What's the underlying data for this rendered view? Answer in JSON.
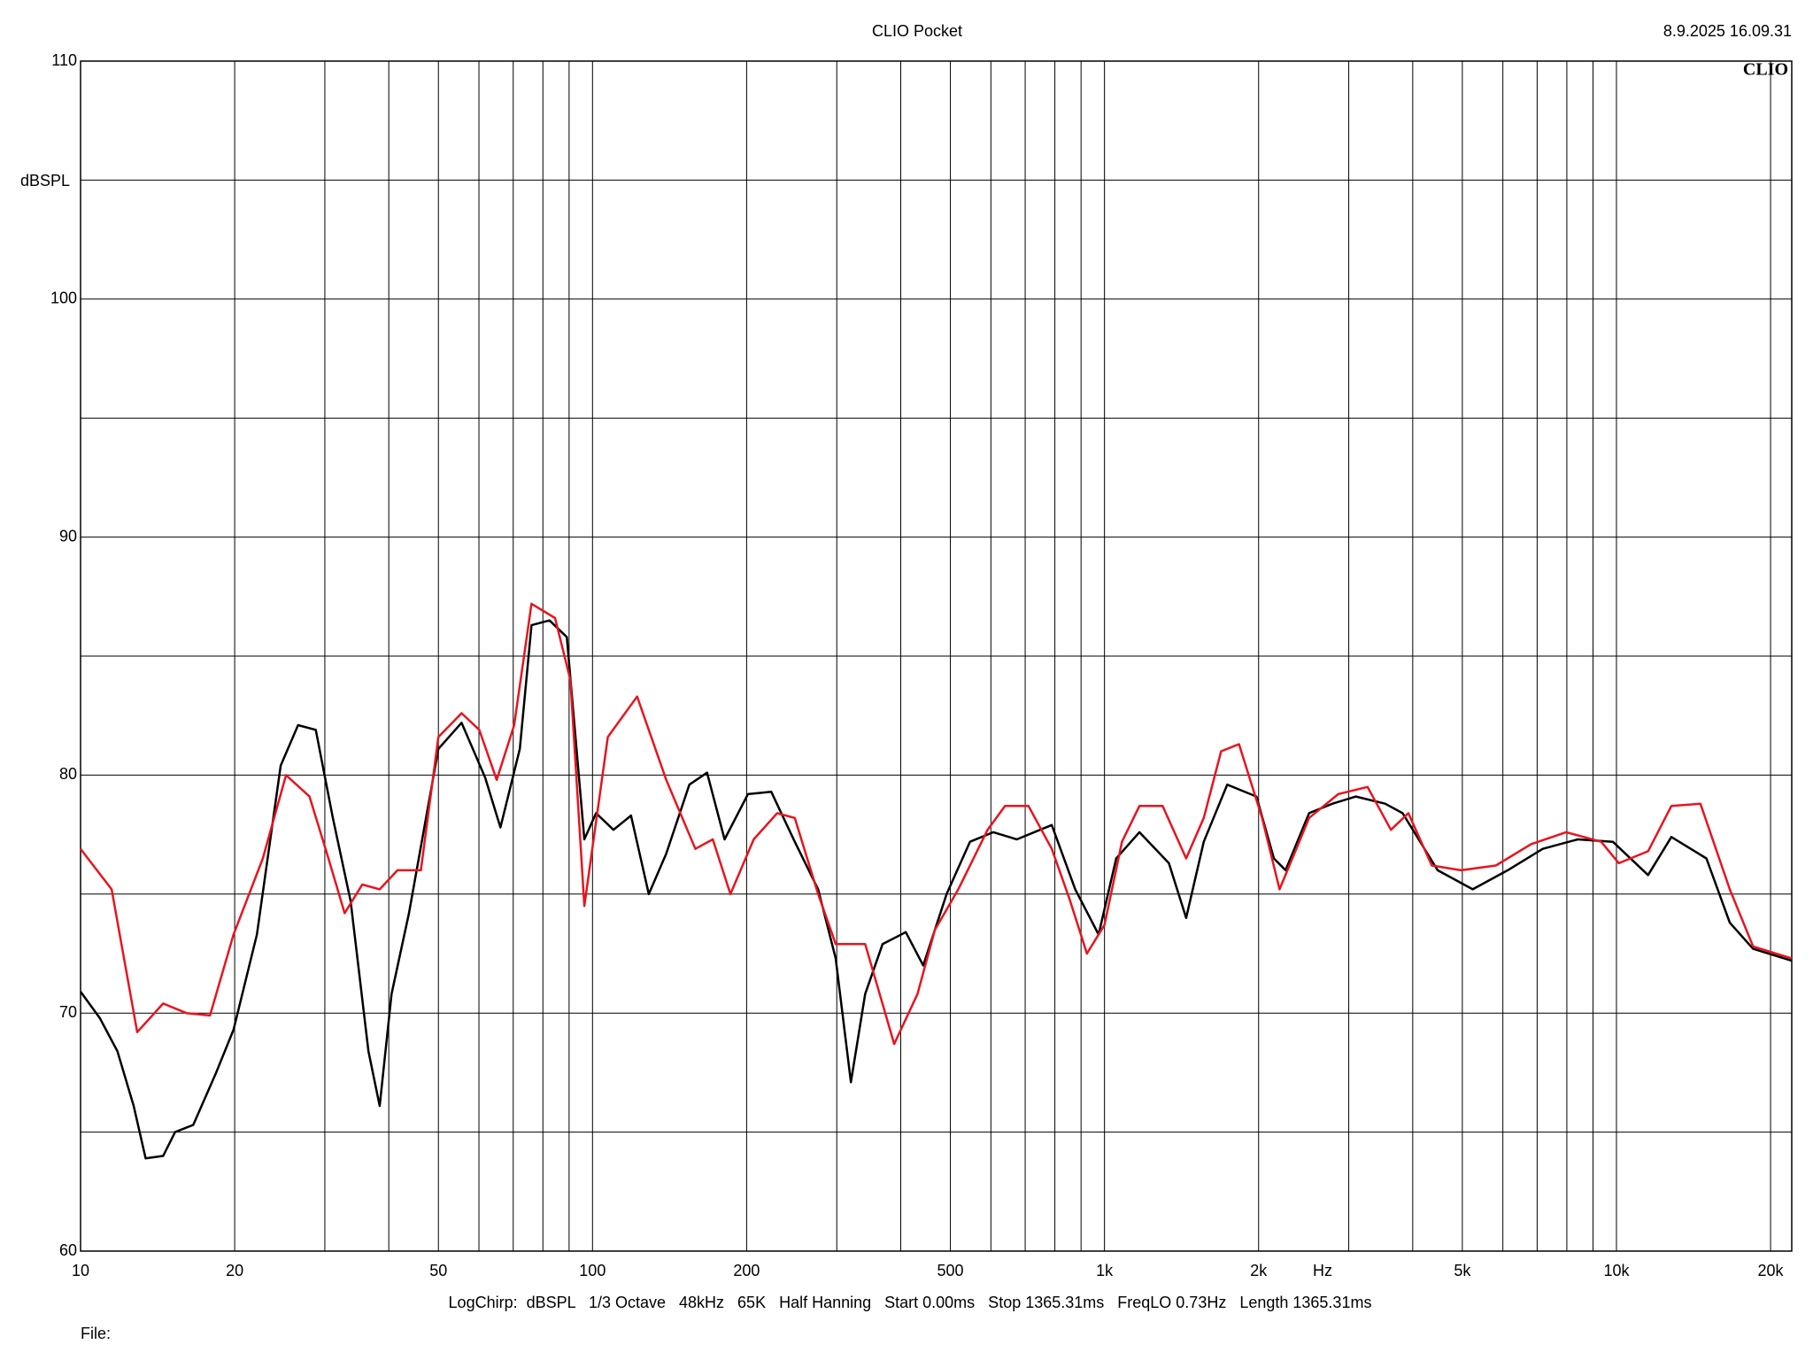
{
  "chart_data": {
    "type": "line",
    "title": "CLIO Pocket",
    "timestamp": "8.9.2025 16.09.31",
    "logo": "CLIO",
    "y_label": "dBSPL",
    "x_label": "Hz",
    "footer": "LogChirp:  dBSPL   1/3 Octave   48kHz   65K   Half Hanning   Start 0.00ms   Stop 1365.31ms   FreqLO 0.73Hz   Length 1365.31ms",
    "file_label": "File:",
    "x_scale": "log",
    "grid": true,
    "xlim": [
      10,
      22000
    ],
    "ylim": [
      60,
      110
    ],
    "xticks": [
      10,
      20,
      50,
      100,
      200,
      500,
      {
        "value": 1000,
        "label": "1k"
      },
      {
        "value": 2000,
        "label": "2k"
      },
      {
        "value": 5000,
        "label": "5k"
      },
      {
        "value": 10000,
        "label": "10k"
      },
      {
        "value": 20000,
        "label": "20k"
      }
    ],
    "x_minor_grid": [
      30,
      40,
      60,
      70,
      80,
      90,
      300,
      400,
      600,
      700,
      800,
      900,
      3000,
      4000,
      6000,
      7000,
      8000,
      9000
    ],
    "yticks": [
      60,
      70,
      80,
      90,
      100,
      110
    ],
    "y_minor_grid": [
      65,
      75,
      85,
      95,
      105
    ],
    "series": [
      {
        "color": "#000000",
        "x": [
          10,
          10.9,
          11.8,
          12.7,
          13.4,
          14.5,
          15.3,
          16.6,
          18.4,
          19.9,
          22.1,
          24.6,
          26.6,
          28.8,
          31.1,
          33.7,
          36.5,
          38.4,
          40.5,
          43.8,
          50,
          55.5,
          61.7,
          66.1,
          72.1,
          76,
          82.4,
          89.1,
          96.4,
          101.6,
          109.9,
          118.9,
          128.8,
          139.3,
          154.6,
          167.4,
          181.1,
          201.2,
          223.4,
          248.4,
          275.9,
          298.5,
          319.7,
          340.8,
          368.6,
          409.2,
          442.5,
          491.6,
          546.1,
          606.6,
          674,
          789,
          876.6,
          973.9,
          1054,
          1170,
          1336,
          1444,
          1563,
          1737,
          1981,
          2142,
          2258,
          2510,
          2788,
          3097,
          3533,
          3822,
          4474,
          5239,
          6131,
          7178,
          8404,
          9841,
          11530,
          12800,
          14990,
          16650,
          18490,
          22000
        ],
        "values": [
          70.9,
          69.8,
          68.4,
          66.1,
          63.9,
          64.0,
          65.0,
          65.3,
          67.5,
          69.3,
          73.3,
          80.4,
          82.1,
          81.9,
          78.2,
          74.7,
          68.4,
          66.1,
          70.8,
          74.2,
          81.1,
          82.2,
          79.9,
          77.8,
          81.1,
          86.3,
          86.5,
          85.8,
          77.3,
          78.4,
          77.7,
          78.3,
          75.0,
          76.7,
          79.6,
          80.1,
          77.3,
          79.2,
          79.3,
          77.2,
          75.2,
          72.3,
          67.1,
          70.8,
          72.9,
          73.4,
          72.0,
          75.0,
          77.2,
          77.6,
          77.3,
          77.9,
          75.2,
          73.3,
          76.5,
          77.6,
          76.3,
          74.0,
          77.2,
          79.6,
          79.1,
          76.5,
          76.0,
          78.4,
          78.8,
          79.1,
          78.8,
          78.4,
          76.0,
          75.2,
          76.0,
          76.9,
          77.3,
          77.2,
          75.8,
          77.4,
          76.5,
          73.8,
          72.7,
          72.2
        ]
      },
      {
        "color": "#e8141e",
        "x": [
          10,
          11.5,
          12.9,
          14.5,
          16.1,
          17.9,
          19.9,
          22.7,
          25.2,
          28,
          30.3,
          32.8,
          35.5,
          38.4,
          41.6,
          46.2,
          50,
          55.5,
          60.1,
          65,
          70.3,
          76,
          84.5,
          90.5,
          96.4,
          107.1,
          122.2,
          139.3,
          158.8,
          171.8,
          185.9,
          206.5,
          229.4,
          248.4,
          275.9,
          298.5,
          340.8,
          388.3,
          431.3,
          466.4,
          518.1,
          591.2,
          639.4,
          710.4,
          789,
          854.3,
          924,
          1000,
          1082,
          1170,
          1299,
          1444,
          1563,
          1690,
          1831,
          2032,
          2198,
          2510,
          2862,
          3264,
          3626,
          3923,
          4358,
          4970,
          5816,
          6810,
          7973,
          9336,
          10110,
          11530,
          12800,
          14590,
          16650,
          18490,
          22000
        ],
        "values": [
          76.9,
          75.2,
          69.2,
          70.4,
          70.0,
          69.9,
          73.3,
          76.5,
          80.0,
          79.1,
          76.7,
          74.2,
          75.4,
          75.2,
          76.0,
          76.0,
          81.6,
          82.6,
          81.9,
          79.8,
          82.1,
          87.2,
          86.6,
          84.0,
          74.5,
          81.6,
          83.3,
          79.8,
          76.9,
          77.3,
          75.0,
          77.3,
          78.4,
          78.2,
          75.0,
          72.9,
          72.9,
          68.7,
          70.8,
          73.5,
          75.2,
          77.7,
          78.7,
          78.7,
          76.9,
          74.8,
          72.5,
          73.7,
          77.2,
          78.7,
          78.7,
          76.5,
          78.2,
          81.0,
          81.3,
          78.2,
          75.2,
          78.2,
          79.2,
          79.5,
          77.7,
          78.4,
          76.2,
          76.0,
          76.2,
          77.1,
          77.6,
          77.2,
          76.3,
          76.8,
          78.7,
          78.8,
          75.2,
          72.8,
          72.3
        ]
      }
    ]
  }
}
